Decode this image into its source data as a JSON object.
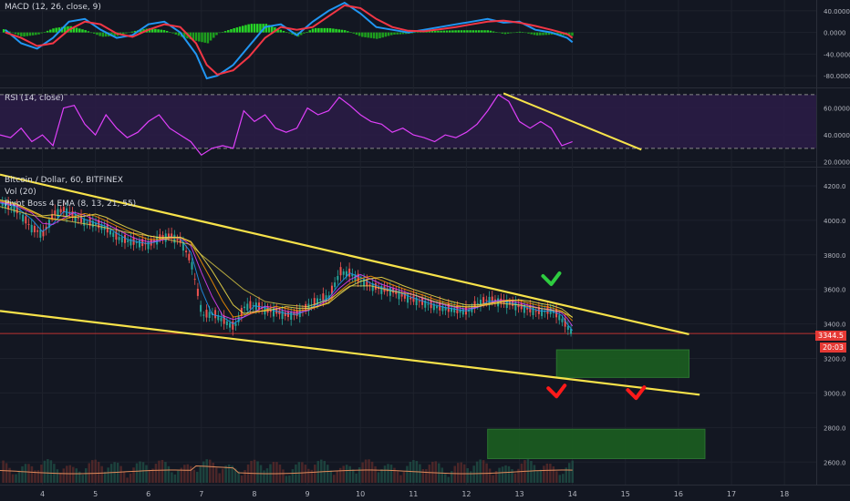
{
  "chart_data": [
    {
      "type": "line",
      "title": "MACD (12, 26, close, 9)",
      "yticks": [
        "40.0000",
        "0.0000",
        "-40.0000",
        "-80.0000"
      ],
      "ytick_values": [
        40,
        0,
        -40,
        -80
      ],
      "ylim": [
        -100,
        60
      ],
      "series": [
        {
          "color": "#2196f3",
          "x": [
            3.3,
            3.6,
            3.9,
            4.2,
            4.5,
            4.8,
            5.1,
            5.4,
            5.7,
            6.0,
            6.3,
            6.6,
            6.9,
            7.1,
            7.3,
            7.6,
            7.9,
            8.2,
            8.5,
            8.8,
            9.1,
            9.4,
            9.7,
            10.0,
            10.3,
            10.6,
            10.9,
            11.2,
            11.5,
            11.8,
            12.1,
            12.4,
            12.7,
            13.0,
            13.3,
            13.6,
            13.9,
            14.0
          ],
          "y": [
            5,
            -20,
            -30,
            -10,
            20,
            25,
            5,
            -10,
            -5,
            15,
            20,
            0,
            -40,
            -85,
            -80,
            -60,
            -25,
            10,
            15,
            -5,
            20,
            40,
            55,
            35,
            10,
            5,
            0,
            5,
            10,
            15,
            20,
            25,
            18,
            20,
            5,
            0,
            -10,
            -18
          ]
        },
        {
          "color": "#f23645",
          "x": [
            3.3,
            3.6,
            3.9,
            4.2,
            4.5,
            4.8,
            5.1,
            5.4,
            5.7,
            6.0,
            6.3,
            6.6,
            6.9,
            7.1,
            7.3,
            7.6,
            7.9,
            8.2,
            8.5,
            8.8,
            9.1,
            9.4,
            9.7,
            10.0,
            10.3,
            10.6,
            10.9,
            11.2,
            11.5,
            11.8,
            12.1,
            12.4,
            12.7,
            13.0,
            13.3,
            13.6,
            13.9,
            14.0
          ],
          "y": [
            0,
            -10,
            -25,
            -20,
            5,
            20,
            15,
            -2,
            -8,
            5,
            15,
            10,
            -20,
            -60,
            -78,
            -70,
            -45,
            -10,
            10,
            5,
            10,
            30,
            50,
            45,
            25,
            10,
            3,
            2,
            6,
            10,
            15,
            20,
            22,
            18,
            12,
            5,
            -3,
            -10
          ]
        }
      ]
    },
    {
      "type": "line",
      "title": "RSI (14, close)",
      "yticks": [
        "60.0000",
        "40.0000",
        "20.0000"
      ],
      "ytick_values": [
        60,
        40,
        20
      ],
      "ylim": [
        17,
        74
      ],
      "band": [
        30,
        70
      ],
      "series": [
        {
          "color": "#e040fb",
          "x": [
            3.2,
            3.4,
            3.6,
            3.8,
            4.0,
            4.2,
            4.4,
            4.6,
            4.8,
            5.0,
            5.2,
            5.4,
            5.6,
            5.8,
            6.0,
            6.2,
            6.4,
            6.6,
            6.8,
            7.0,
            7.2,
            7.4,
            7.6,
            7.8,
            8.0,
            8.2,
            8.4,
            8.6,
            8.8,
            9.0,
            9.2,
            9.4,
            9.6,
            9.8,
            10.0,
            10.2,
            10.4,
            10.6,
            10.8,
            11.0,
            11.2,
            11.4,
            11.6,
            11.8,
            12.0,
            12.2,
            12.4,
            12.6,
            12.8,
            13.0,
            13.2,
            13.4,
            13.6,
            13.8,
            14.0
          ],
          "y": [
            40,
            38,
            45,
            35,
            40,
            32,
            60,
            62,
            48,
            40,
            55,
            45,
            38,
            42,
            50,
            55,
            45,
            40,
            35,
            25,
            30,
            32,
            30,
            58,
            50,
            55,
            45,
            42,
            45,
            60,
            55,
            58,
            68,
            62,
            55,
            50,
            48,
            42,
            45,
            40,
            38,
            35,
            40,
            38,
            42,
            48,
            58,
            70,
            65,
            50,
            45,
            50,
            45,
            32,
            35
          ]
        }
      ],
      "trendline": {
        "x": [
          12.7,
          15.3
        ],
        "y": [
          71,
          29
        ]
      }
    },
    {
      "type": "line",
      "title": "Bitcoin / Dollar, 60, BITFINEX",
      "subtitles": [
        "Vol (20)",
        "Pivot Boss 4 EMA (8, 13, 21, 55)"
      ],
      "categories": [
        "4",
        "5",
        "6",
        "7",
        "8",
        "9",
        "10",
        "11",
        "12",
        "13",
        "14",
        "15",
        "16",
        "17",
        "18"
      ],
      "x_ticks": [
        4,
        5,
        6,
        7,
        8,
        9,
        10,
        11,
        12,
        13,
        14,
        15,
        16,
        17,
        18
      ],
      "yticks": [
        "4200.0",
        "4000.0",
        "3800.0",
        "3600.0",
        "3400.0",
        "3200.0",
        "3000.0",
        "2800.0",
        "2600.0"
      ],
      "ytick_values": [
        4200,
        4000,
        3800,
        3600,
        3400,
        3200,
        3000,
        2800,
        2600
      ],
      "ylim": [
        2480,
        4300
      ],
      "last_price": "3344.5",
      "last_price_value": 3344.5,
      "countdown": "20:03",
      "series": [
        {
          "color": "#26a69a",
          "x": [
            3.2,
            3.5,
            3.8,
            4.0,
            4.2,
            4.4,
            4.6,
            4.8,
            5.0,
            5.2,
            5.4,
            5.6,
            5.8,
            6.0,
            6.2,
            6.4,
            6.6,
            6.8,
            7.0,
            7.2,
            7.4,
            7.6,
            7.8,
            8.0,
            8.2,
            8.4,
            8.6,
            8.8,
            9.0,
            9.2,
            9.4,
            9.6,
            9.8,
            10.0,
            10.2,
            10.4,
            10.6,
            10.8,
            11.0,
            11.2,
            11.4,
            11.6,
            11.8,
            12.0,
            12.2,
            12.4,
            12.6,
            12.8,
            13.0,
            13.2,
            13.4,
            13.6,
            13.8,
            13.9,
            14.0
          ],
          "y": [
            4100,
            4060,
            3950,
            3920,
            4040,
            4060,
            4020,
            3990,
            3980,
            3950,
            3900,
            3880,
            3870,
            3860,
            3900,
            3910,
            3880,
            3750,
            3450,
            3460,
            3420,
            3380,
            3500,
            3510,
            3480,
            3470,
            3450,
            3460,
            3500,
            3540,
            3560,
            3700,
            3690,
            3650,
            3620,
            3600,
            3590,
            3560,
            3540,
            3520,
            3500,
            3490,
            3480,
            3470,
            3520,
            3540,
            3530,
            3520,
            3500,
            3480,
            3470,
            3480,
            3420,
            3380,
            3344
          ]
        },
        {
          "color": "#f7e24a",
          "label_free": true,
          "x": [
            3.2,
            3.8,
            4.4,
            5.0,
            5.6,
            6.2,
            6.8,
            7.0,
            7.4,
            7.8,
            8.2,
            8.6,
            9.0,
            9.4,
            9.8,
            10.2,
            10.6,
            11.0,
            11.4,
            11.8,
            12.2,
            12.6,
            13.0,
            13.4,
            13.8,
            14.0
          ],
          "y": [
            4080,
            4030,
            4000,
            3970,
            3930,
            3900,
            3860,
            3800,
            3700,
            3600,
            3530,
            3510,
            3500,
            3540,
            3620,
            3620,
            3590,
            3570,
            3530,
            3500,
            3500,
            3520,
            3510,
            3490,
            3470,
            3440
          ]
        }
      ],
      "annotations": {
        "trendline_upper": {
          "x": [
            3.2,
            16.2
          ],
          "y": [
            4265,
            3340
          ]
        },
        "trendline_lower": {
          "x": [
            3.2,
            16.4
          ],
          "y": [
            3475,
            2990
          ]
        },
        "zone_1": {
          "x": [
            13.7,
            16.2
          ],
          "y": [
            3090,
            3250
          ]
        },
        "zone_2": {
          "x": [
            12.4,
            16.5
          ],
          "y": [
            2620,
            2790
          ]
        },
        "green_arrow": {
          "x": 13.6,
          "y": 3630
        },
        "red_arrows": [
          {
            "x": 13.7,
            "y": 2980
          },
          {
            "x": 15.2,
            "y": 2970
          }
        ]
      }
    }
  ]
}
